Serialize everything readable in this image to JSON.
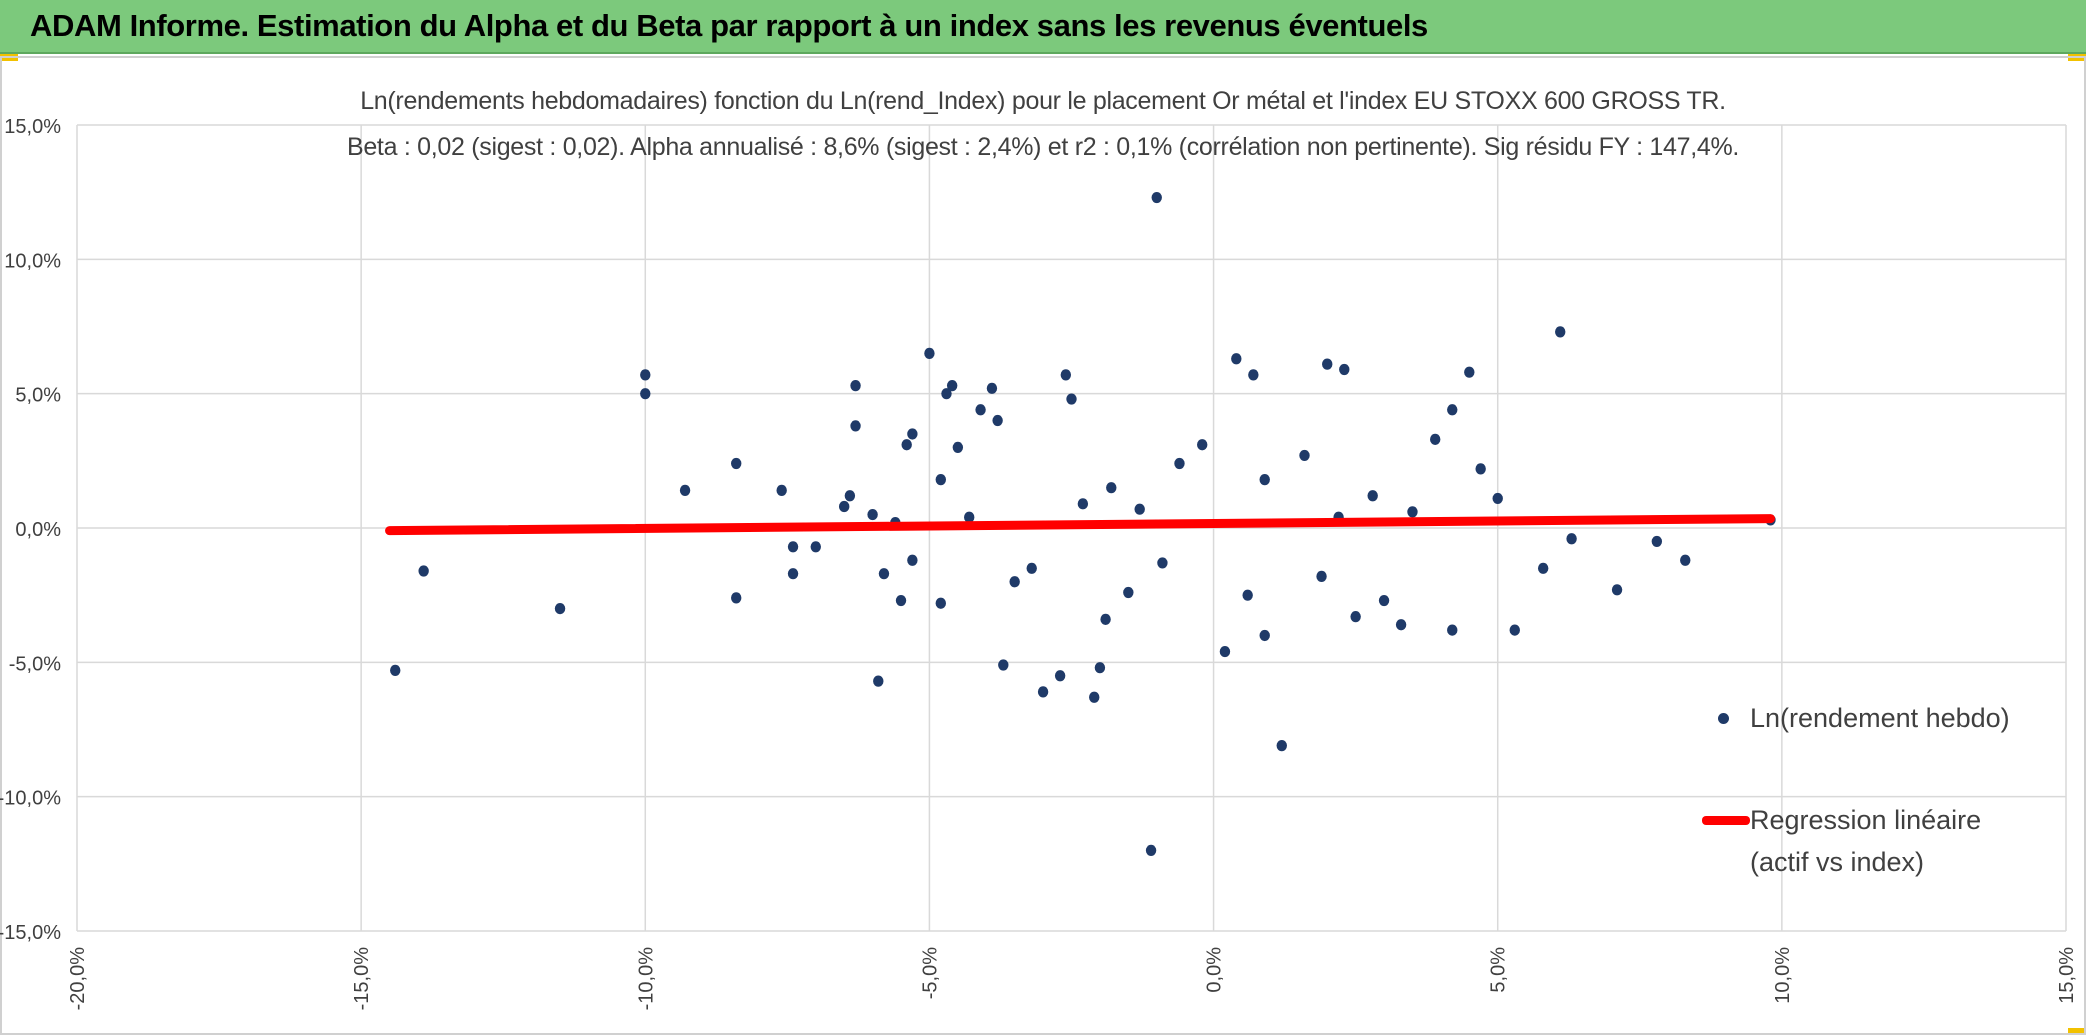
{
  "header": {
    "title": "ADAM Informe. Estimation du Alpha et du Beta par rapport à un index sans les revenus éventuels"
  },
  "colors": {
    "header_bg": "#7cc97c",
    "points": "#1f3a68",
    "regression": "#ff0000",
    "grid": "#d9d9d9",
    "text": "#404040"
  },
  "chart_data": {
    "type": "scatter",
    "title_line1": "Ln(rendements hebdomadaires) fonction du Ln(rend_Index) pour le placement Or métal et l'index EU STOXX 600 GROSS TR.",
    "title_line2": "Beta : 0,02 (sigest : 0,02). Alpha annualisé : 8,6% (sigest : 2,4%) et r2 : 0,1% (corrélation non pertinente). Sig résidu FY : 147,4%.",
    "xlim": [
      -20,
      15
    ],
    "ylim": [
      -15,
      15
    ],
    "x_ticks": [
      -20,
      -15,
      -10,
      -5,
      0,
      5,
      10,
      15
    ],
    "x_tick_labels": [
      "-20,0%",
      "-15,0%",
      "-10,0%",
      "-5,0%",
      "0,0%",
      "5,0%",
      "10,0%",
      "15,0%"
    ],
    "y_ticks": [
      15,
      10,
      5,
      0,
      -5,
      -10,
      -15
    ],
    "y_tick_labels": [
      "15,0%",
      "10,0%",
      "5,0%",
      "0,0%",
      "-5,0%",
      "-10,0%",
      "-15,0%"
    ],
    "series": [
      {
        "name": "Ln(rendement hebdo)",
        "kind": "points",
        "points": [
          [
            -14.4,
            -5.3
          ],
          [
            -13.9,
            -1.6
          ],
          [
            -11.5,
            -3.0
          ],
          [
            -10.0,
            5.7
          ],
          [
            -10.0,
            5.0
          ],
          [
            -9.3,
            1.4
          ],
          [
            -8.4,
            2.4
          ],
          [
            -8.4,
            -2.6
          ],
          [
            -7.6,
            1.4
          ],
          [
            -7.4,
            -0.7
          ],
          [
            -7.4,
            -1.7
          ],
          [
            -7.0,
            -0.7
          ],
          [
            -6.5,
            0.8
          ],
          [
            -6.4,
            1.2
          ],
          [
            -6.3,
            5.3
          ],
          [
            -6.3,
            3.8
          ],
          [
            -6.0,
            0.5
          ],
          [
            -5.9,
            -5.7
          ],
          [
            -5.8,
            -1.7
          ],
          [
            -5.6,
            0.2
          ],
          [
            -5.5,
            -2.7
          ],
          [
            -5.4,
            3.1
          ],
          [
            -5.3,
            3.5
          ],
          [
            -5.3,
            -1.2
          ],
          [
            -5.0,
            6.5
          ],
          [
            -4.8,
            1.8
          ],
          [
            -4.8,
            -2.8
          ],
          [
            -4.7,
            5.0
          ],
          [
            -4.6,
            5.3
          ],
          [
            -4.5,
            3.0
          ],
          [
            -4.3,
            0.4
          ],
          [
            -4.1,
            4.4
          ],
          [
            -3.9,
            5.2
          ],
          [
            -3.8,
            4.0
          ],
          [
            -3.7,
            -5.1
          ],
          [
            -3.2,
            -1.5
          ],
          [
            -3.0,
            -6.1
          ],
          [
            -2.7,
            -5.5
          ],
          [
            -2.6,
            5.7
          ],
          [
            -2.5,
            4.8
          ],
          [
            -2.1,
            -6.3
          ],
          [
            -2.0,
            -5.2
          ],
          [
            -1.5,
            -2.4
          ],
          [
            -1.0,
            12.3
          ],
          [
            -1.1,
            -12.0
          ],
          [
            0.4,
            6.3
          ],
          [
            0.7,
            5.7
          ],
          [
            0.2,
            -4.6
          ],
          [
            0.9,
            -4.0
          ],
          [
            1.2,
            -8.1
          ],
          [
            2.0,
            6.1
          ],
          [
            2.3,
            5.9
          ],
          [
            2.5,
            -3.3
          ],
          [
            3.3,
            -3.6
          ],
          [
            3.9,
            3.3
          ],
          [
            4.2,
            -3.8
          ],
          [
            4.2,
            4.4
          ],
          [
            4.5,
            5.8
          ],
          [
            4.7,
            2.2
          ],
          [
            5.0,
            1.1
          ],
          [
            5.3,
            -3.8
          ],
          [
            5.8,
            -1.5
          ],
          [
            6.1,
            7.3
          ],
          [
            6.3,
            -0.4
          ],
          [
            7.1,
            -2.3
          ],
          [
            7.8,
            -0.5
          ],
          [
            8.3,
            -1.2
          ],
          [
            9.8,
            0.3
          ],
          [
            -2.3,
            0.9
          ],
          [
            -1.8,
            1.5
          ],
          [
            -0.6,
            2.4
          ],
          [
            1.6,
            2.7
          ],
          [
            2.8,
            1.2
          ],
          [
            3.5,
            0.6
          ],
          [
            -3.5,
            -2.0
          ],
          [
            -1.9,
            -3.4
          ],
          [
            3.0,
            -2.7
          ],
          [
            1.9,
            -1.8
          ],
          [
            -0.9,
            -1.3
          ],
          [
            0.6,
            -2.5
          ],
          [
            -0.2,
            3.1
          ],
          [
            2.2,
            0.4
          ],
          [
            -1.3,
            0.7
          ],
          [
            0.9,
            1.8
          ]
        ]
      },
      {
        "name": "Regression linéaire (actif vs index)",
        "kind": "line",
        "x": [
          -14.5,
          9.8
        ],
        "y": [
          -0.1,
          0.35
        ]
      }
    ],
    "legend": {
      "series1": "Ln(rendement hebdo)",
      "series2_line1": "Regression linéaire",
      "series2_line2": "(actif vs index)",
      "position": "right"
    },
    "grid": true
  }
}
